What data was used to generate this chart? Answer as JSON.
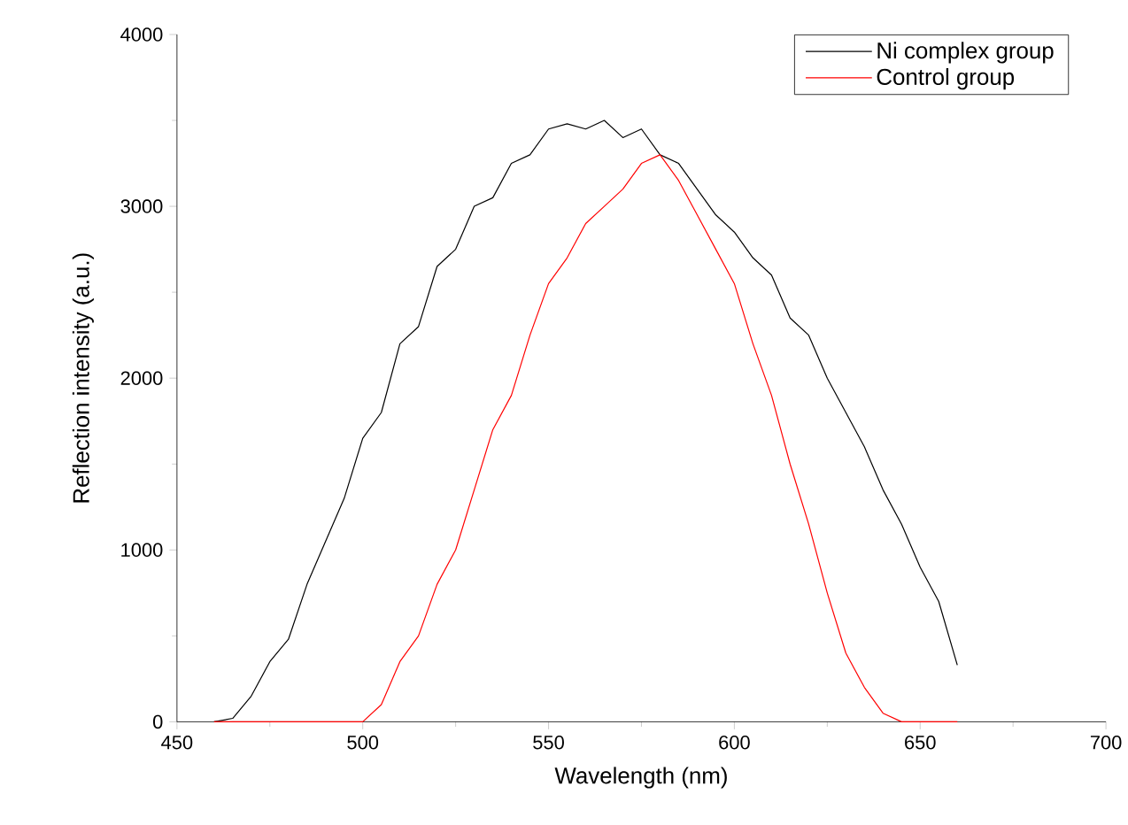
{
  "chart_data": {
    "type": "line",
    "xlabel": "Wavelength (nm)",
    "ylabel": "Reflection intensity (a.u.)",
    "xlim": [
      450,
      700
    ],
    "ylim": [
      0,
      4000
    ],
    "xticks": [
      450,
      500,
      550,
      600,
      650,
      700
    ],
    "yticks": [
      0,
      1000,
      2000,
      3000,
      4000
    ],
    "legend": "top right",
    "series": [
      {
        "name": "Ni complex group",
        "color": "#000000",
        "x": [
          460,
          465,
          470,
          475,
          480,
          485,
          490,
          495,
          500,
          505,
          510,
          515,
          520,
          525,
          530,
          535,
          540,
          545,
          550,
          555,
          560,
          565,
          570,
          575,
          580,
          585,
          590,
          595,
          600,
          605,
          610,
          615,
          620,
          625,
          630,
          635,
          640,
          645,
          650,
          655,
          660
        ],
        "values": [
          0,
          20,
          150,
          350,
          480,
          800,
          1050,
          1300,
          1650,
          1800,
          2200,
          2300,
          2650,
          2750,
          3000,
          3050,
          3250,
          3300,
          3450,
          3480,
          3450,
          3500,
          3400,
          3450,
          3300,
          3250,
          3100,
          2950,
          2850,
          2700,
          2600,
          2350,
          2250,
          2000,
          1800,
          1600,
          1350,
          1150,
          900,
          700,
          330
        ]
      },
      {
        "name": "Control group",
        "color": "#ff0000",
        "x": [
          460,
          498,
          500,
          505,
          510,
          515,
          520,
          525,
          530,
          535,
          540,
          545,
          550,
          555,
          560,
          565,
          570,
          575,
          580,
          585,
          590,
          595,
          600,
          605,
          610,
          615,
          620,
          625,
          630,
          635,
          640,
          645,
          660
        ],
        "values": [
          0,
          0,
          0,
          100,
          350,
          500,
          800,
          1000,
          1350,
          1700,
          1900,
          2250,
          2550,
          2700,
          2900,
          3000,
          3100,
          3250,
          3300,
          3150,
          2950,
          2750,
          2550,
          2200,
          1900,
          1500,
          1150,
          750,
          400,
          200,
          50,
          0,
          0
        ]
      }
    ]
  }
}
